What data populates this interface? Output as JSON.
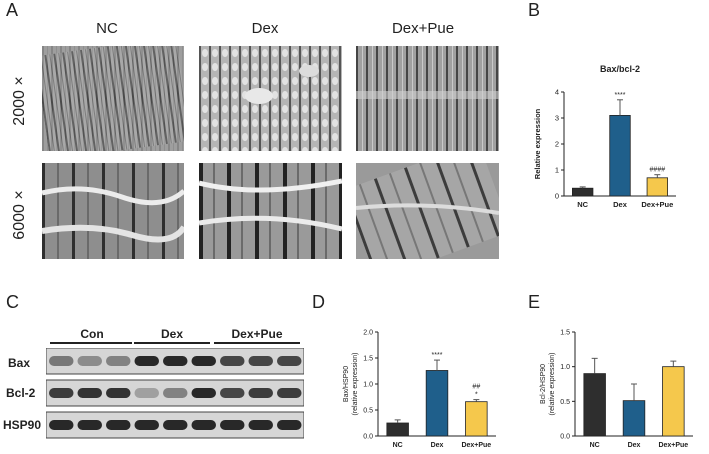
{
  "panels": {
    "a": {
      "letter": "A",
      "columns": [
        "NC",
        "Dex",
        "Dex+Pue"
      ],
      "rows": [
        "2000 ×",
        "6000 ×"
      ]
    },
    "b": {
      "letter": "B"
    },
    "c": {
      "letter": "C",
      "groups": [
        "Con",
        "Dex",
        "Dex+Pue"
      ],
      "proteins": [
        "Bax",
        "Bcl-2",
        "HSP90"
      ],
      "band_intensity": {
        "Bax": [
          0.55,
          0.45,
          0.5,
          0.95,
          0.95,
          0.95,
          0.8,
          0.8,
          0.8
        ],
        "Bcl-2": [
          0.85,
          0.9,
          0.9,
          0.35,
          0.5,
          0.95,
          0.8,
          0.85,
          0.85
        ],
        "HSP90": [
          0.95,
          0.95,
          0.95,
          0.95,
          0.95,
          0.95,
          0.95,
          0.95,
          0.95
        ]
      }
    },
    "d": {
      "letter": "D"
    },
    "e": {
      "letter": "E"
    }
  },
  "chart_data": [
    {
      "id": "B",
      "type": "bar",
      "title": "Bax/bcl-2",
      "ylabel": "Relative expression",
      "ylabel2": "",
      "categories": [
        "NC",
        "Dex",
        "Dex+Pue"
      ],
      "values": [
        0.3,
        3.1,
        0.7
      ],
      "errors": [
        0.05,
        0.6,
        0.12
      ],
      "annotations": [
        "",
        "****",
        "####"
      ],
      "ylim": [
        0,
        4
      ],
      "yticks": [
        "0",
        "1",
        "2",
        "3",
        "4"
      ],
      "colors": [
        "#2e2e2e",
        "#1f5f8b",
        "#f5c84c"
      ]
    },
    {
      "id": "D",
      "type": "bar",
      "title": "",
      "ylabel": "Bax/HSP90",
      "ylabel2": "(relative expression)",
      "categories": [
        "NC",
        "Dex",
        "Dex+Pue"
      ],
      "values": [
        0.25,
        1.26,
        0.66
      ],
      "errors": [
        0.06,
        0.2,
        0.04
      ],
      "annotations": [
        "",
        "****",
        "##\n*"
      ],
      "ylim": [
        0,
        2
      ],
      "yticks": [
        "0.0",
        "0.5",
        "1.0",
        "1.5",
        "2.0"
      ],
      "colors": [
        "#2e2e2e",
        "#1f5f8b",
        "#f5c84c"
      ]
    },
    {
      "id": "E",
      "type": "bar",
      "title": "",
      "ylabel": "Bcl-2/HSP90",
      "ylabel2": "(relative expression)",
      "categories": [
        "NC",
        "Dex",
        "Dex+Pue"
      ],
      "values": [
        0.9,
        0.51,
        1.0
      ],
      "errors": [
        0.22,
        0.24,
        0.08
      ],
      "annotations": [
        "",
        "",
        ""
      ],
      "ylim": [
        0,
        1.5
      ],
      "yticks": [
        "0.0",
        "0.5",
        "1.0",
        "1.5"
      ],
      "colors": [
        "#2e2e2e",
        "#1f5f8b",
        "#f5c84c"
      ]
    }
  ]
}
